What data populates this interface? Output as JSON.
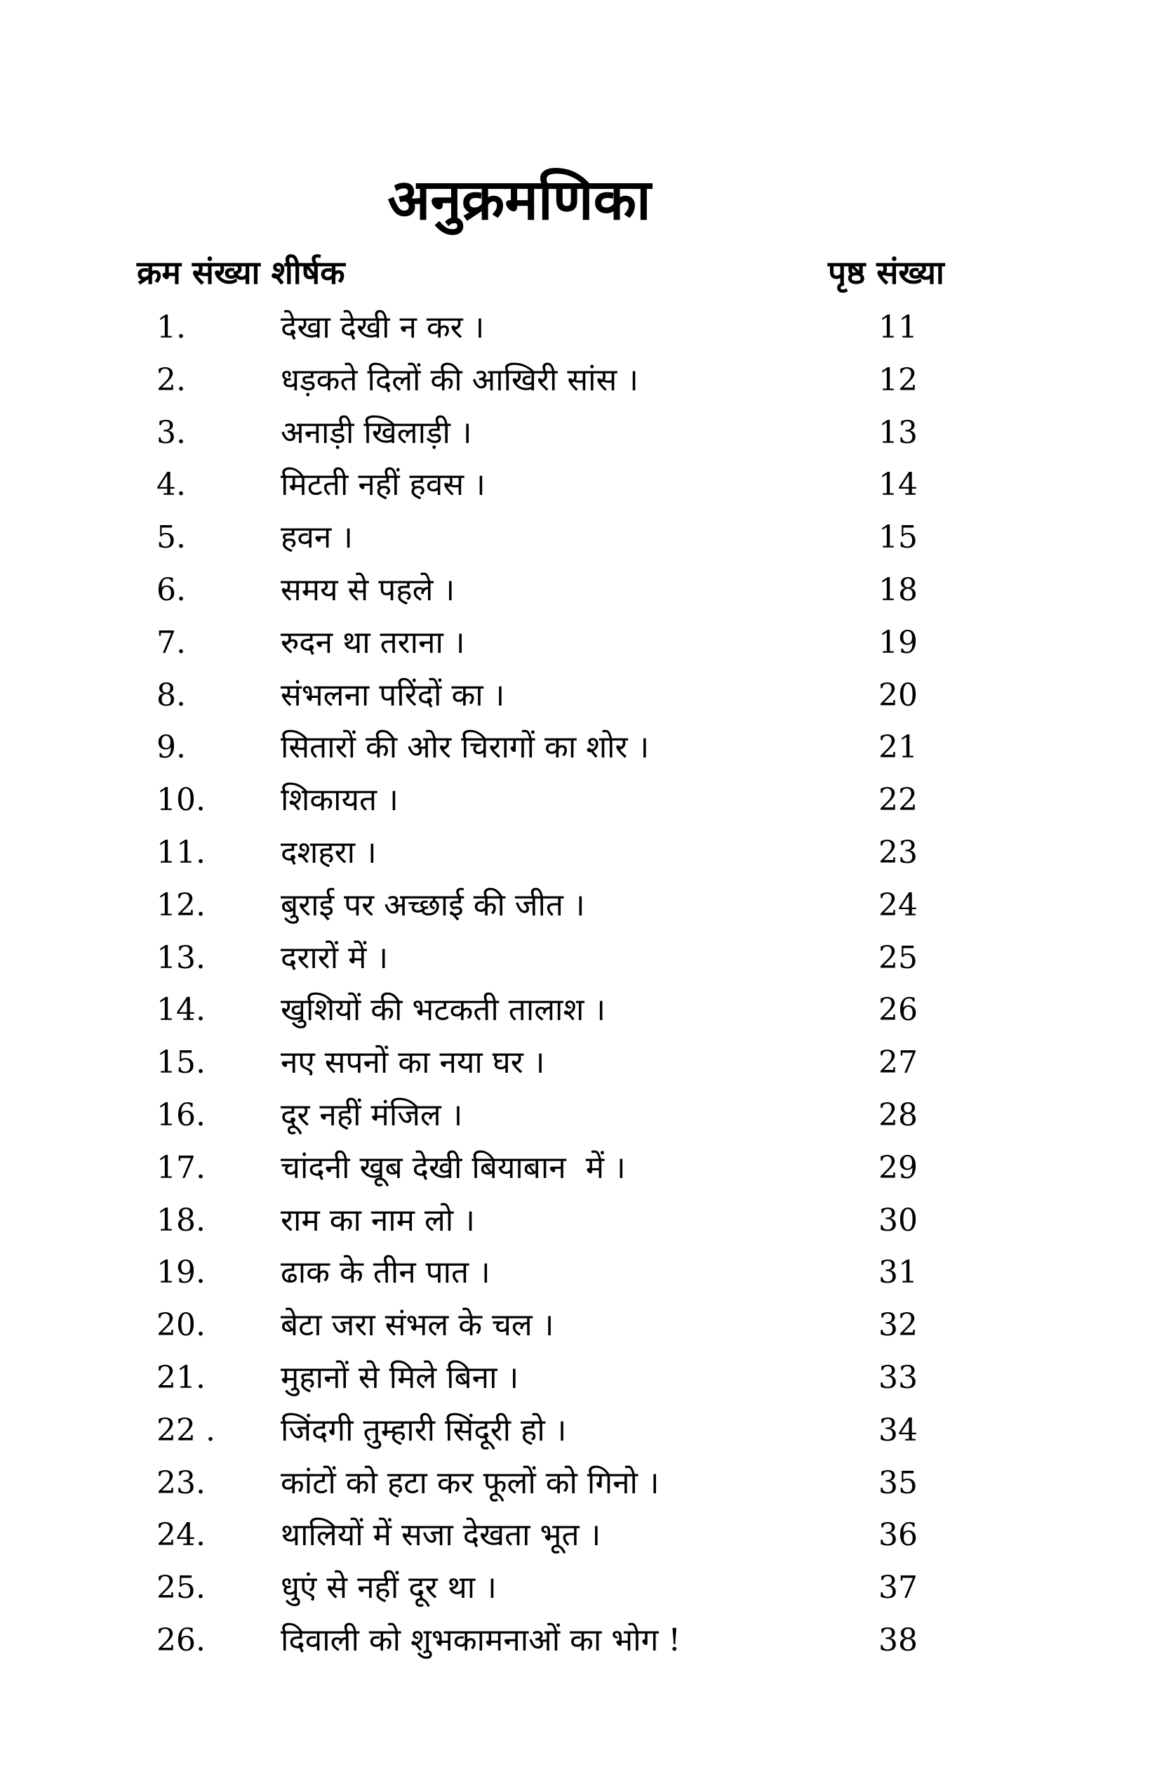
{
  "page": {
    "title": "अनुक्रमणिका"
  },
  "colors": {
    "text": "#000000",
    "background": "#ffffff"
  },
  "table": {
    "header_left": "क्रम संख्या शीर्षक",
    "header_right": "पृष्ठ संख्या",
    "rows": [
      {
        "no": "1.",
        "title": "देखा देखी न कर ।",
        "page": "11"
      },
      {
        "no": "2.",
        "title": "धड़कते दिलों की आखिरी सांस ।",
        "page": "12"
      },
      {
        "no": "3.",
        "title": "अनाड़ी खिलाड़ी ।",
        "page": "13"
      },
      {
        "no": "4.",
        "title": "मिटती नहीं हवस ।",
        "page": "14"
      },
      {
        "no": "5.",
        "title": "हवन ।",
        "page": "15"
      },
      {
        "no": "6.",
        "title": "समय से पहले ।",
        "page": "18"
      },
      {
        "no": "7.",
        "title": "रुदन था तराना ।",
        "page": "19"
      },
      {
        "no": "8.",
        "title": "संभलना परिंदों का ।",
        "page": "20"
      },
      {
        "no": "9.",
        "title": "सितारों की ओर चिरागों का शोर ।",
        "page": "21"
      },
      {
        "no": "10.",
        "title": "शिकायत ।",
        "page": "22"
      },
      {
        "no": "11.",
        "title": "दशहरा ।",
        "page": "23"
      },
      {
        "no": "12.",
        "title": "बुराई पर अच्छाई की जीत ।",
        "page": "24"
      },
      {
        "no": "13.",
        "title": "दरारों में ।",
        "page": "25"
      },
      {
        "no": "14.",
        "title": "खुशियों की भटकती तालाश ।",
        "page": "26"
      },
      {
        "no": "15.",
        "title": "नए सपनों का नया घर ।",
        "page": "27"
      },
      {
        "no": "16.",
        "title": "दूर नहीं मंजिल ।",
        "page": "28"
      },
      {
        "no": "17.",
        "title": "चांदनी खूब देखी बियाबान  में ।",
        "page": "29"
      },
      {
        "no": "18.",
        "title": "राम का नाम लो ।",
        "page": "30"
      },
      {
        "no": "19.",
        "title": "ढाक के तीन पात ।",
        "page": "31"
      },
      {
        "no": "20.",
        "title": "बेटा जरा संभल के चल ।",
        "page": "32"
      },
      {
        "no": "21.",
        "title": "मुहानों से मिले बिना ।",
        "page": "33"
      },
      {
        "no": "22 .",
        "title": "जिंदगी तुम्हारी सिंदूरी हो ।",
        "page": "34"
      },
      {
        "no": "23.",
        "title": "कांटों को हटा कर फूलों को गिनो ।",
        "page": "35"
      },
      {
        "no": "24.",
        "title": "थालियों में सजा देखता भूत ।",
        "page": "36"
      },
      {
        "no": "25.",
        "title": "धुएं से नहीं दूर था ।",
        "page": "37"
      },
      {
        "no": "26.",
        "title": "दिवाली को शुभकामनाओं का भोग !",
        "page": "38"
      }
    ]
  }
}
